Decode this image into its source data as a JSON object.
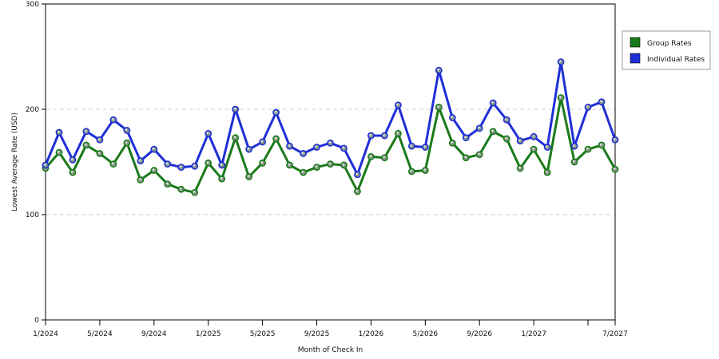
{
  "chart_data": {
    "type": "line",
    "title": "",
    "xlabel": "Month of Check In",
    "ylabel": "Lowest Average Rate (USD)",
    "ylim": [
      0,
      300
    ],
    "yticks": [
      0,
      100,
      200,
      300
    ],
    "grid": true,
    "legend_position": "right",
    "x": [
      "1/2024",
      "2/2024",
      "3/2024",
      "4/2024",
      "5/2024",
      "6/2024",
      "7/2024",
      "8/2024",
      "9/2024",
      "10/2024",
      "11/2024",
      "12/2024",
      "1/2025",
      "2/2025",
      "3/2025",
      "4/2025",
      "5/2025",
      "6/2025",
      "7/2025",
      "8/2025",
      "9/2025",
      "10/2025",
      "11/2025",
      "12/2025",
      "1/2026",
      "2/2026",
      "3/2026",
      "4/2026",
      "5/2026",
      "6/2026",
      "7/2026",
      "8/2026",
      "9/2026",
      "10/2026",
      "11/2026",
      "12/2026",
      "1/2027",
      "2/2027",
      "3/2027",
      "4/2027",
      "5/2027",
      "6/2027",
      "7/2027"
    ],
    "xtick_labels": [
      {
        "index": 0,
        "label": "1/2024"
      },
      {
        "index": 4,
        "label": "5/2024"
      },
      {
        "index": 8,
        "label": "9/2024"
      },
      {
        "index": 12,
        "label": "1/2025"
      },
      {
        "index": 16,
        "label": "5/2025"
      },
      {
        "index": 20,
        "label": "9/2025"
      },
      {
        "index": 24,
        "label": "1/2026"
      },
      {
        "index": 28,
        "label": "5/2026"
      },
      {
        "index": 32,
        "label": "9/2026"
      },
      {
        "index": 36,
        "label": "1/2027"
      },
      {
        "index": 40,
        "label": ""
      },
      {
        "index": 42,
        "label": "7/2027"
      }
    ],
    "series": [
      {
        "name": "Group Rates",
        "color": "#1a7a1a",
        "values": [
          144,
          159,
          140,
          166,
          158,
          148,
          168,
          133,
          142,
          129,
          124,
          121,
          149,
          134,
          173,
          136,
          149,
          172,
          147,
          140,
          145,
          148,
          147,
          122,
          155,
          154,
          177,
          141,
          142,
          202,
          168,
          154,
          157,
          179,
          172,
          144,
          162,
          140,
          211,
          150,
          162,
          166,
          143
        ]
      },
      {
        "name": "Individual Rates",
        "color": "#1f2fd6",
        "values": [
          147,
          178,
          152,
          179,
          171,
          190,
          180,
          151,
          162,
          148,
          145,
          146,
          177,
          147,
          200,
          162,
          169,
          197,
          165,
          158,
          164,
          168,
          163,
          138,
          175,
          175,
          204,
          165,
          164,
          237,
          192,
          173,
          182,
          206,
          190,
          170,
          174,
          164,
          245,
          165,
          202,
          207,
          171
        ]
      }
    ]
  }
}
